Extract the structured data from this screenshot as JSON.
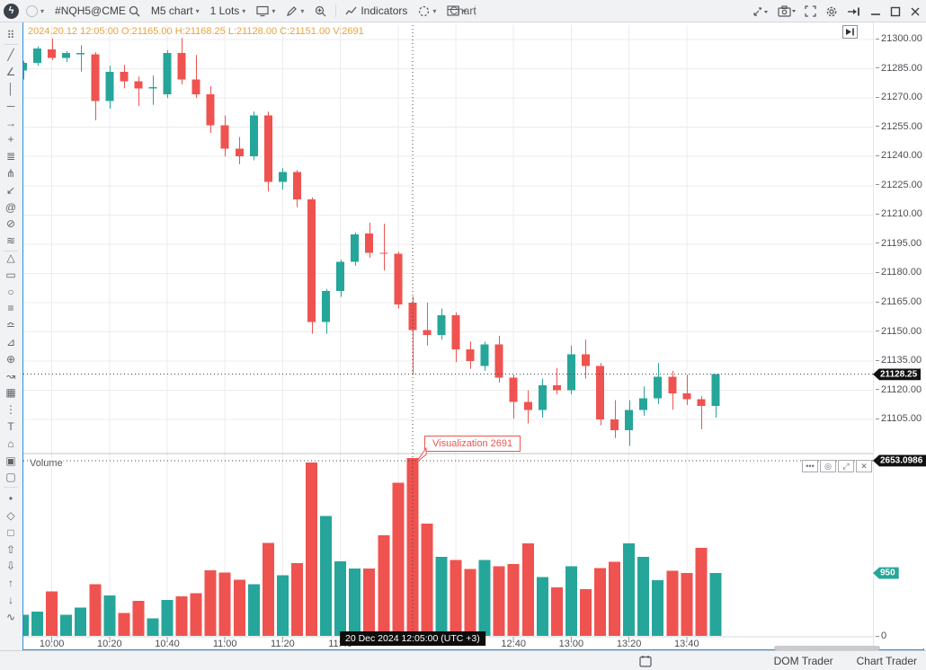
{
  "titlebar": {
    "symbol": "#NQH5@CME",
    "timeframe": "M5 chart",
    "lots": "1 Lots",
    "indicators_label": "Indicators",
    "window_title": "Chart"
  },
  "ohlc_readout": "2024.20.12 12:05:00 O:21165.00 H:21168.25 L:21128.00 C:21151.00 V:2691",
  "volume_pane": {
    "label": "Volume",
    "controls": [
      {
        "name": "more-options",
        "glyph": "•••"
      },
      {
        "name": "visibility-eye",
        "glyph": "◎"
      },
      {
        "name": "collapse-pane",
        "glyph": "⤢"
      },
      {
        "name": "close-pane",
        "glyph": "✕"
      }
    ]
  },
  "price_axis": {
    "grid_max": 21300,
    "grid_min": 21105,
    "grid_step": 15,
    "decimals": 2,
    "last_price": 21128.25,
    "last_price_label": "21128.25",
    "label_bg": "#111111"
  },
  "volume_axis": {
    "crosshair_value": 2653.0986,
    "crosshair_label": "2653.0986",
    "current_volume": 950,
    "current_volume_label": "950",
    "current_volume_bg": "#26a69a",
    "zero_label": "0"
  },
  "time_axis": {
    "labels": [
      {
        "i": 2,
        "label": "10:00"
      },
      {
        "i": 6,
        "label": "10:20"
      },
      {
        "i": 10,
        "label": "10:40"
      },
      {
        "i": 14,
        "label": "11:00"
      },
      {
        "i": 18,
        "label": "11:20"
      },
      {
        "i": 22,
        "label": "11:40"
      },
      {
        "i": 34,
        "label": "12:40"
      },
      {
        "i": 38,
        "label": "13:00"
      },
      {
        "i": 42,
        "label": "13:20"
      },
      {
        "i": 46,
        "label": "13:40"
      }
    ],
    "crosshair_label": "20 Dec 2024 12:05:00 (UTC +3)"
  },
  "tooltip": {
    "text": "Visualization 2691"
  },
  "bottom_bar": {
    "tabs": [
      {
        "label": "DOM Trader"
      },
      {
        "label": "Chart Trader"
      }
    ]
  },
  "sidebar_tools": [
    {
      "name": "drag-handle",
      "glyph": "⠿"
    },
    {
      "name": "trend-line",
      "glyph": "╱"
    },
    {
      "name": "angle-line",
      "glyph": "∠"
    },
    {
      "name": "vertical-line",
      "glyph": "│"
    },
    {
      "name": "horizontal-line",
      "glyph": "─"
    },
    {
      "name": "ray-arrow",
      "glyph": "→"
    },
    {
      "name": "cross-line",
      "glyph": "+"
    },
    {
      "name": "parallel-lines",
      "glyph": "≣"
    },
    {
      "name": "pitchfork",
      "glyph": "⋔"
    },
    {
      "name": "arrow-marker",
      "glyph": "↙"
    },
    {
      "name": "mention",
      "glyph": "@"
    },
    {
      "name": "ellipse-tool",
      "glyph": "⊘"
    },
    {
      "name": "hatching",
      "glyph": "≋"
    },
    {
      "name": "triangle-tool",
      "glyph": "△"
    },
    {
      "name": "rectangle-tool",
      "glyph": "▭"
    },
    {
      "name": "circle-tool",
      "glyph": "○"
    },
    {
      "name": "fib-retracement",
      "glyph": "≡"
    },
    {
      "name": "fib-expansion",
      "glyph": "≏"
    },
    {
      "name": "gann-fan",
      "glyph": "⊿"
    },
    {
      "name": "cyclic-lines",
      "glyph": "⊕"
    },
    {
      "name": "zigzag-tool",
      "glyph": "↝"
    },
    {
      "name": "selection-box",
      "glyph": "▦"
    },
    {
      "name": "dotted-column",
      "glyph": "⋮"
    },
    {
      "name": "text-tool",
      "glyph": "T"
    },
    {
      "name": "price-label",
      "glyph": "⌂"
    },
    {
      "name": "callout",
      "glyph": "▣"
    },
    {
      "name": "capsule-label",
      "glyph": "▢"
    },
    {
      "name": "dot-marker",
      "glyph": "•"
    },
    {
      "name": "diamond-marker",
      "glyph": "◇"
    },
    {
      "name": "square-marker",
      "glyph": "□"
    },
    {
      "name": "arrow-up-marker",
      "glyph": "⇧"
    },
    {
      "name": "arrow-down-marker",
      "glyph": "⇩"
    },
    {
      "name": "trend-up-marker",
      "glyph": "↑"
    },
    {
      "name": "trend-down-marker",
      "glyph": "↓"
    },
    {
      "name": "wave-tool",
      "glyph": "∿"
    }
  ],
  "chart_data": {
    "type": "candlestick+volume",
    "symbol": "#NQH5@CME",
    "interval": "M5",
    "start_time": "09:50",
    "interval_min": 5,
    "colors": {
      "up": "#26a69a",
      "down": "#ef5350",
      "grid": "#ececec",
      "crosshair": "#444444"
    },
    "price_axis_range": [
      21085,
      21307
    ],
    "volume_axis_range": [
      0,
      2720
    ],
    "hovered_bar": {
      "index": 27,
      "time": "12:05",
      "open": 21165.0,
      "high": 21168.25,
      "low": 21128.0,
      "close": 21151.0,
      "volume": 2691
    },
    "candles": [
      [
        21284,
        21289,
        21279.5,
        21288,
        320
      ],
      [
        21288,
        21296.5,
        21286.5,
        21295.5,
        365
      ],
      [
        21295,
        21300.5,
        21289.5,
        21290.5,
        670
      ],
      [
        21290.5,
        21294,
        21288.5,
        21293,
        320
      ],
      [
        21292.5,
        21297,
        21283.5,
        21293,
        430
      ],
      [
        21292.5,
        21293.5,
        21258.5,
        21268.5,
        780
      ],
      [
        21268.5,
        21286.5,
        21264.5,
        21283.5,
        615
      ],
      [
        21283.5,
        21287,
        21275,
        21278.5,
        350
      ],
      [
        21278.5,
        21281,
        21266,
        21275,
        530
      ],
      [
        21275,
        21281.5,
        21266.5,
        21275.5,
        265
      ],
      [
        21272,
        21294.5,
        21270,
        21293,
        545
      ],
      [
        21293,
        21300.75,
        21277,
        21279.5,
        600
      ],
      [
        21279.5,
        21292,
        21270,
        21272,
        645
      ],
      [
        21272,
        21276,
        21252,
        21256,
        990
      ],
      [
        21256,
        21261,
        21240,
        21244,
        960
      ],
      [
        21244,
        21250,
        21236,
        21240,
        850
      ],
      [
        21240,
        21263,
        21238,
        21261,
        780
      ],
      [
        21261,
        21263,
        21222,
        21227,
        1410
      ],
      [
        21227,
        21234,
        21223,
        21232,
        920
      ],
      [
        21232,
        21233,
        21214,
        21218,
        1100
      ],
      [
        21218,
        21219,
        21149,
        21155,
        2625
      ],
      [
        21155,
        21172,
        21149,
        21171,
        1815
      ],
      [
        21171,
        21187,
        21168,
        21186,
        1130
      ],
      [
        21186,
        21201,
        21184,
        21200,
        1020
      ],
      [
        21200.5,
        21206,
        21188,
        21190.5,
        1020
      ],
      [
        21190.5,
        21205.5,
        21181.5,
        21190,
        1520
      ],
      [
        21190,
        21191,
        21162,
        21164,
        2320
      ],
      [
        21165,
        21168.25,
        21128,
        21151,
        2691
      ],
      [
        21151,
        21165,
        21143,
        21148.5,
        1700
      ],
      [
        21148.5,
        21162,
        21146,
        21158.5,
        1195
      ],
      [
        21158.5,
        21160,
        21134.5,
        21141,
        1150
      ],
      [
        21141,
        21145,
        21131,
        21135,
        1010
      ],
      [
        21132.5,
        21145,
        21130,
        21143.5,
        1150
      ],
      [
        21143.5,
        21148,
        21124,
        21126.5,
        1055
      ],
      [
        21126.5,
        21128,
        21105.5,
        21114,
        1085
      ],
      [
        21114,
        21120,
        21103,
        21110,
        1400
      ],
      [
        21110,
        21126,
        21106,
        21122.5,
        890
      ],
      [
        21122.5,
        21131.5,
        21118,
        21120,
        735
      ],
      [
        21120,
        21143,
        21118,
        21138.5,
        1055
      ],
      [
        21138.5,
        21146,
        21126,
        21132.5,
        710
      ],
      [
        21132.5,
        21134,
        21102,
        21105,
        1030
      ],
      [
        21105,
        21115,
        21095.5,
        21099.5,
        1125
      ],
      [
        21099.5,
        21115,
        21091.5,
        21110,
        1400
      ],
      [
        21110,
        21122,
        21107,
        21116,
        1195
      ],
      [
        21116,
        21134,
        21113,
        21127,
        845
      ],
      [
        21127,
        21130,
        21110,
        21118.5,
        985
      ],
      [
        21118.5,
        21128,
        21112.5,
        21115.5,
        955
      ],
      [
        21115.5,
        21117,
        21100,
        21112,
        1335
      ],
      [
        21112,
        21128.25,
        21106,
        21128.25,
        950
      ]
    ]
  }
}
